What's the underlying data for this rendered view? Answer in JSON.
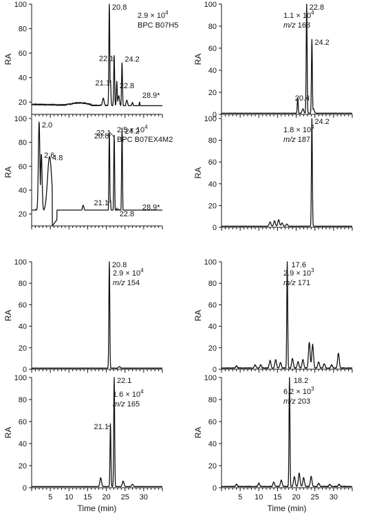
{
  "chart_data": [
    {
      "type": "line",
      "title": "BPC B07H5",
      "ylabel": "RA",
      "xlabel": "",
      "ylim": [
        10,
        100
      ],
      "xlim": [
        0,
        35
      ],
      "annotation": {
        "intensity": "2.9 × 10",
        "intensity_exp": "4",
        "trace": "BPC B07H5",
        "mz_prefix": "",
        "mz_value": ""
      },
      "peaks": [
        {
          "x": 20.8,
          "y": 100,
          "label": "20.8"
        },
        {
          "x": 21.1,
          "y": 38,
          "label": "21.1"
        },
        {
          "x": 22.1,
          "y": 58,
          "label": "22.1"
        },
        {
          "x": 22.8,
          "y": 37,
          "label": "22.8"
        },
        {
          "x": 24.2,
          "y": 52,
          "label": "24.2"
        },
        {
          "x": 28.9,
          "y": 20,
          "label": "28.9*"
        }
      ]
    },
    {
      "type": "line",
      "title": "m/z 168",
      "ylabel": "RA",
      "xlabel": "",
      "ylim": [
        0,
        100
      ],
      "xlim": [
        0,
        35
      ],
      "annotation": {
        "intensity": "1.1 × 10",
        "intensity_exp": "4",
        "trace": "",
        "mz_prefix": "m/z",
        "mz_value": "168"
      },
      "peaks": [
        {
          "x": 20.4,
          "y": 15,
          "label": "20.4"
        },
        {
          "x": 22.8,
          "y": 100,
          "label": "22.8"
        },
        {
          "x": 24.2,
          "y": 68,
          "label": "24.2"
        }
      ]
    },
    {
      "type": "line",
      "title": "BPC B07EX4M2",
      "ylabel": "RA",
      "xlabel": "",
      "ylim": [
        10,
        100
      ],
      "xlim": [
        0,
        35
      ],
      "annotation": {
        "intensity": "2.5 × 10",
        "intensity_exp": "4",
        "trace": "BPC B07EX4M2",
        "mz_prefix": "",
        "mz_value": ""
      },
      "peaks": [
        {
          "x": 2.0,
          "y": 97,
          "label": "2.0"
        },
        {
          "x": 2.6,
          "y": 70,
          "label": "2.6"
        },
        {
          "x": 4.8,
          "y": 68,
          "label": "4.8"
        },
        {
          "x": 20.8,
          "y": 88,
          "label": "20.8"
        },
        {
          "x": 21.1,
          "y": 32,
          "label": "21.1"
        },
        {
          "x": 22.1,
          "y": 86,
          "label": "22.1"
        },
        {
          "x": 22.8,
          "y": 25,
          "label": "22.8"
        },
        {
          "x": 24.2,
          "y": 92,
          "label": "24.2"
        },
        {
          "x": 28.9,
          "y": 20,
          "label": "28.9*"
        }
      ]
    },
    {
      "type": "line",
      "title": "m/z 187",
      "ylabel": "RA",
      "xlabel": "",
      "ylim": [
        0,
        100
      ],
      "xlim": [
        0,
        35
      ],
      "annotation": {
        "intensity": "1.8 × 10",
        "intensity_exp": "4",
        "trace": "",
        "mz_prefix": "m/z",
        "mz_value": "187"
      },
      "peaks": [
        {
          "x": 24.2,
          "y": 100,
          "label": "24.2"
        }
      ]
    },
    {
      "type": "line",
      "title": "m/z 154",
      "ylabel": "RA",
      "xlabel": "",
      "ylim": [
        0,
        100
      ],
      "xlim": [
        0,
        35
      ],
      "annotation": {
        "intensity": "2.9 × 10",
        "intensity_exp": "4",
        "trace": "",
        "mz_prefix": "m/z",
        "mz_value": "154"
      },
      "peaks": [
        {
          "x": 20.8,
          "y": 100,
          "label": "20.8"
        }
      ]
    },
    {
      "type": "line",
      "title": "m/z 171",
      "ylabel": "RA",
      "xlabel": "",
      "ylim": [
        0,
        100
      ],
      "xlim": [
        0,
        35
      ],
      "annotation": {
        "intensity": "2.9 × 10",
        "intensity_exp": "3",
        "trace": "",
        "mz_prefix": "m/z",
        "mz_value": "171"
      },
      "peaks": [
        {
          "x": 17.6,
          "y": 100,
          "label": "17.6"
        }
      ]
    },
    {
      "type": "line",
      "title": "m/z 165",
      "ylabel": "RA",
      "xlabel": "Time (min)",
      "ylim": [
        0,
        100
      ],
      "xlim": [
        0,
        35
      ],
      "annotation": {
        "intensity": "1.6 × 10",
        "intensity_exp": "4",
        "trace": "",
        "mz_prefix": "m/z",
        "mz_value": "165"
      },
      "peaks": [
        {
          "x": 21.1,
          "y": 58,
          "label": "21.1"
        },
        {
          "x": 22.1,
          "y": 100,
          "label": "22.1"
        }
      ]
    },
    {
      "type": "line",
      "title": "m/z 203",
      "ylabel": "RA",
      "xlabel": "Time (min)",
      "ylim": [
        0,
        100
      ],
      "xlim": [
        0,
        35
      ],
      "annotation": {
        "intensity": "6.2 × 10",
        "intensity_exp": "3",
        "trace": "",
        "mz_prefix": "m/z",
        "mz_value": "203"
      },
      "peaks": [
        {
          "x": 18.2,
          "y": 100,
          "label": "18.2"
        }
      ]
    }
  ],
  "axes": {
    "y_label": "RA",
    "x_label": "Time (min)",
    "y_ticks_full": [
      "0",
      "20",
      "40",
      "60",
      "80",
      "100"
    ],
    "y_ticks_bpc": [
      "20",
      "40",
      "60",
      "80",
      "100"
    ],
    "x_ticks": [
      "5",
      "10",
      "15",
      "20",
      "25",
      "30"
    ]
  }
}
